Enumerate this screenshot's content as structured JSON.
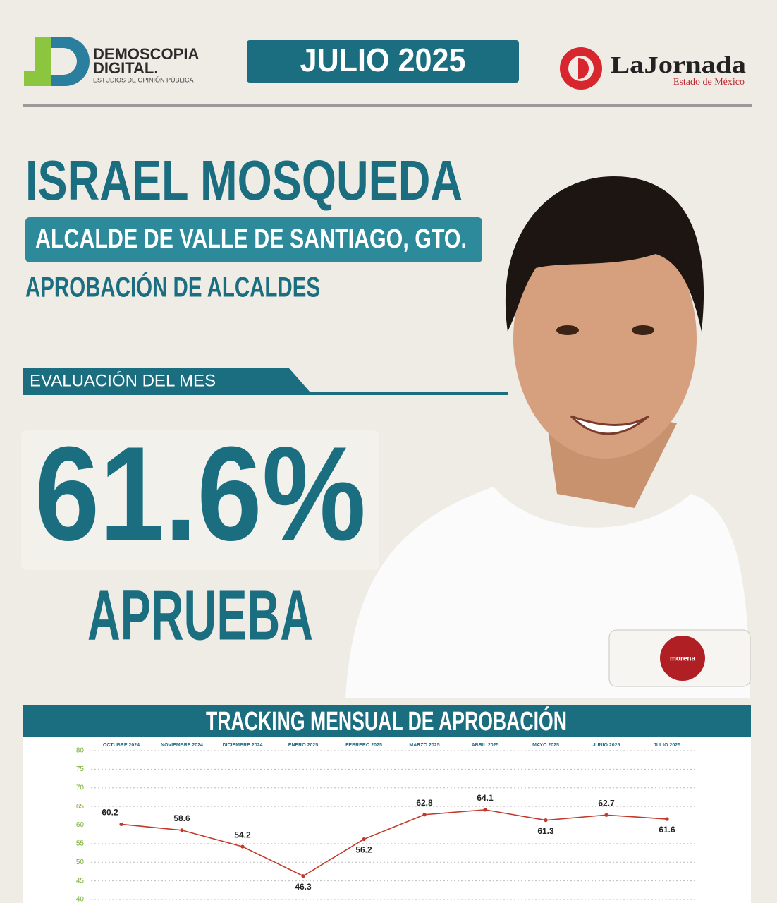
{
  "header": {
    "brand": "DEMOSCOPIA",
    "brand2": "DIGITAL.",
    "brand_sub": "ESTUDIOS DE OPINIÓN PÚBLICA",
    "period": "JULIO 2025",
    "partner": "LaJornada",
    "partner_sub": "Estado de México"
  },
  "profile": {
    "name": "ISRAEL MOSQUEDA",
    "role": "ALCALDE DE VALLE DE SANTIAGO, GTO.",
    "survey": "APROBACIÓN DE ALCALDES",
    "section": "EVALUACIÓN DEL MES",
    "approval": "61.6%",
    "approval_label": "APRUEBA",
    "party": "morena"
  },
  "chart_data": {
    "type": "line",
    "title": "TRACKING MENSUAL DE APROBACIÓN",
    "categories": [
      "OCTUBRE 2024",
      "NOVIEMBRE 2024",
      "DICIEMBRE 2024",
      "ENERO 2025",
      "FEBRERO 2025",
      "MARZO 2025",
      "ABRIL 2025",
      "MAYO 2025",
      "JUNIO 2025",
      "JULIO 2025"
    ],
    "values": [
      60.2,
      58.6,
      54.2,
      46.3,
      56.2,
      62.8,
      64.1,
      61.3,
      62.7,
      61.6
    ],
    "color": "#c0392b",
    "ylim": [
      40,
      80
    ],
    "yticks": [
      40,
      45,
      50,
      55,
      60,
      65,
      70,
      75,
      80
    ],
    "grid": true
  }
}
